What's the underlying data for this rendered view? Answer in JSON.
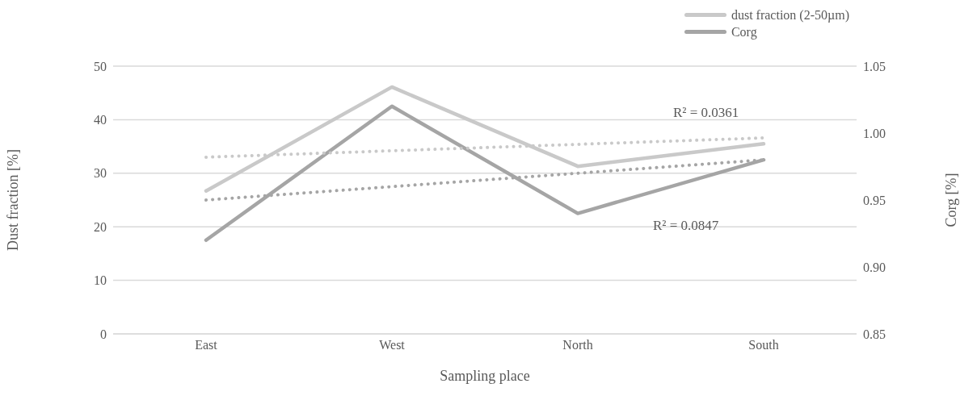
{
  "chart_data": {
    "type": "line",
    "xlabel": "Sampling place",
    "ylabel": "Dust fraction [%]",
    "y2label": "Corg [%]",
    "categories": [
      "East",
      "West",
      "North",
      "South"
    ],
    "series": [
      {
        "name": "dust fraction (2-50µm)",
        "color": "#c9c9c9",
        "values": [
          26.7,
          46.1,
          31.3,
          35.5
        ]
      },
      {
        "name": "Corg",
        "color": "#a5a5a5",
        "axis": "y2",
        "values": [
          0.92,
          1.02,
          0.94,
          0.98
        ]
      },
      {
        "type": "line",
        "color": "#c9c9c9",
        "line_style": "dotted",
        "values": [
          33.0,
          34.2,
          35.4,
          36.6
        ]
      },
      {
        "type": "line",
        "color": "#a5a5a5",
        "line_style": "dotted",
        "axis": "y2",
        "values": [
          0.95,
          0.96,
          0.97,
          0.98
        ]
      }
    ],
    "ylim": [
      0,
      50
    ],
    "yticks": [
      0,
      10,
      20,
      30,
      40,
      50
    ],
    "y2lim": [
      0.85,
      1.05
    ],
    "y2ticks": [
      0.85,
      {
        "value": 0.9,
        "label": "0.90"
      },
      0.95,
      {
        "value": 1.0,
        "label": "1.00"
      },
      1.05
    ],
    "annotations": [
      "R² = 0.0361",
      "R² = 0.0847"
    ],
    "grid": "y",
    "legend": "top right",
    "marker": "none",
    "line_style": "solid"
  }
}
